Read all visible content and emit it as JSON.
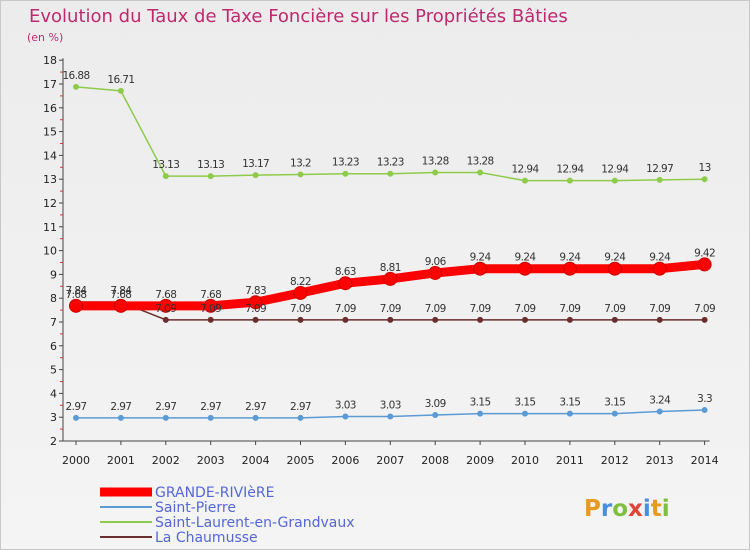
{
  "chart_data": {
    "type": "line",
    "title": "Evolution du Taux de Taxe Foncière sur les Propriétés Bâties",
    "ylabel": "(en %)",
    "xlabel": "",
    "ylim": [
      2,
      18
    ],
    "yticks": [
      "2",
      "3",
      "4",
      "5",
      "6",
      "7",
      "8",
      "9",
      "10",
      "11",
      "12",
      "13",
      "14",
      "15",
      "16",
      "17",
      "18"
    ],
    "x": [
      "2000",
      "2001",
      "2002",
      "2003",
      "2004",
      "2005",
      "2006",
      "2007",
      "2008",
      "2009",
      "2010",
      "2011",
      "2012",
      "2013",
      "2014"
    ],
    "series": [
      {
        "name": "Saint-Pierre",
        "color": "#5b9bd5",
        "values": [
          2.97,
          2.97,
          2.97,
          2.97,
          2.97,
          2.97,
          3.03,
          3.03,
          3.09,
          3.15,
          3.15,
          3.15,
          3.15,
          3.24,
          3.3
        ],
        "labels": [
          "2.97",
          "2.97",
          "2.97",
          "2.97",
          "2.97",
          "2.97",
          "3.03",
          "3.03",
          "3.09",
          "3.15",
          "3.15",
          "3.15",
          "3.15",
          "3.24",
          "3.3"
        ]
      },
      {
        "name": "Saint-Laurent-en-Grandvaux",
        "color": "#8ecb4b",
        "values": [
          16.88,
          16.71,
          13.13,
          13.13,
          13.17,
          13.2,
          13.23,
          13.23,
          13.28,
          13.28,
          12.94,
          12.94,
          12.94,
          12.97,
          13
        ],
        "labels": [
          "16.88",
          "16.71",
          "13.13",
          "13.13",
          "13.17",
          "13.2",
          "13.23",
          "13.23",
          "13.28",
          "13.28",
          "12.94",
          "12.94",
          "12.94",
          "12.97",
          "13"
        ]
      },
      {
        "name": "La Chaumusse",
        "color": "#6b2d2d",
        "values": [
          7.84,
          7.84,
          7.09,
          7.09,
          7.09,
          7.09,
          7.09,
          7.09,
          7.09,
          7.09,
          7.09,
          7.09,
          7.09,
          7.09,
          7.09
        ],
        "labels": [
          "7.84",
          "7.84",
          "7.09",
          "7.09",
          "7.09",
          "7.09",
          "7.09",
          "7.09",
          "7.09",
          "7.09",
          "7.09",
          "7.09",
          "7.09",
          "7.09",
          "7.09"
        ]
      },
      {
        "name": "GRANDE-RIVIèRE",
        "color": "#ff0000",
        "values": [
          7.68,
          7.68,
          7.68,
          7.68,
          7.83,
          8.22,
          8.63,
          8.81,
          9.06,
          9.24,
          9.24,
          9.24,
          9.24,
          9.24,
          9.42
        ],
        "labels": [
          "7.68",
          "7.68",
          "7.68",
          "7.68",
          "7.83",
          "8.22",
          "8.63",
          "8.81",
          "9.06",
          "9.24",
          "9.24",
          "9.24",
          "9.24",
          "9.24",
          "9.42"
        ]
      }
    ],
    "legend": [
      "GRANDE-RIVIèRE",
      "Saint-Pierre",
      "Saint-Laurent-en-Grandvaux",
      "La Chaumusse"
    ],
    "legend_position": "bottom-left"
  },
  "logo": {
    "letters": [
      "P",
      "r",
      "o",
      "x",
      "i",
      "t",
      "i"
    ],
    "colors": [
      "#e89a1e",
      "#4a8fd8",
      "#7fbf3f",
      "#e0453a",
      "#4a8fd8",
      "#e89a1e",
      "#7fbf3f"
    ]
  }
}
